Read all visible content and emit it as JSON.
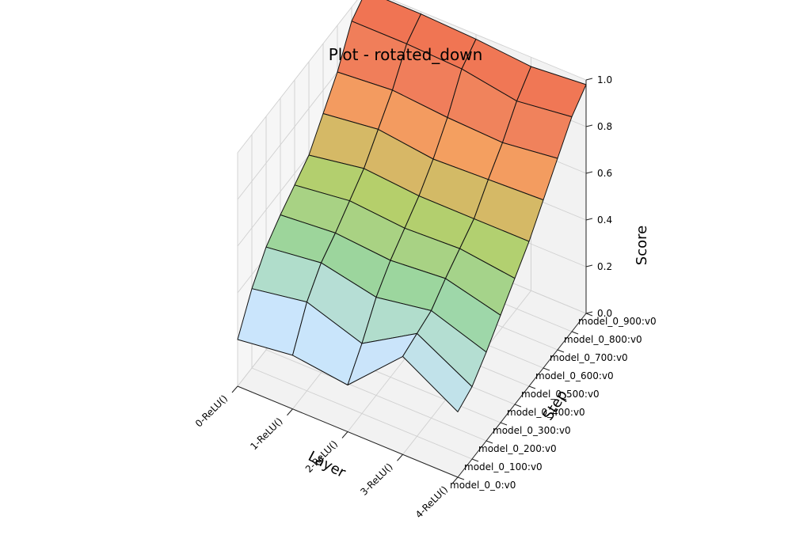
{
  "chart_data": {
    "type": "surface",
    "title": "Plot - rotated_down",
    "xlabel": "Layer",
    "ylabel": "Step",
    "zlabel": "Score",
    "x_categories": [
      "0-ReLU()",
      "1-ReLU()",
      "2-ReLU()",
      "3-ReLU()",
      "4-ReLU()"
    ],
    "y_categories": [
      "model_0_0:v0",
      "model_0_100:v0",
      "model_0_200:v0",
      "model_0_300:v0",
      "model_0_400:v0",
      "model_0_500:v0",
      "model_0_600:v0",
      "model_0_700:v0",
      "model_0_800:v0",
      "model_0_900:v0"
    ],
    "z_ticks": [
      "0.0",
      "0.2",
      "0.4",
      "0.6",
      "0.8",
      "1.0"
    ],
    "zlim": [
      0,
      1
    ],
    "grid": true,
    "colormap": [
      "#c6e6f5",
      "#cce5ff",
      "#9ad6a1",
      "#b5cf6b",
      "#f4a361",
      "#f07f5b",
      "#f07050"
    ],
    "values": [
      [
        0.2,
        0.34,
        0.44,
        0.5,
        0.55,
        0.6,
        0.7,
        0.8,
        0.94,
        0.99
      ],
      [
        0.23,
        0.38,
        0.47,
        0.52,
        0.58,
        0.64,
        0.73,
        0.82,
        0.94,
        0.99
      ],
      [
        0.2,
        0.3,
        0.42,
        0.5,
        0.56,
        0.62,
        0.7,
        0.8,
        0.93,
        0.98
      ],
      [
        0.42,
        0.44,
        0.46,
        0.52,
        0.57,
        0.62,
        0.71,
        0.79,
        0.89,
        0.96
      ],
      [
        0.28,
        0.31,
        0.38,
        0.46,
        0.54,
        0.62,
        0.72,
        0.82,
        0.92,
        0.98
      ]
    ]
  }
}
